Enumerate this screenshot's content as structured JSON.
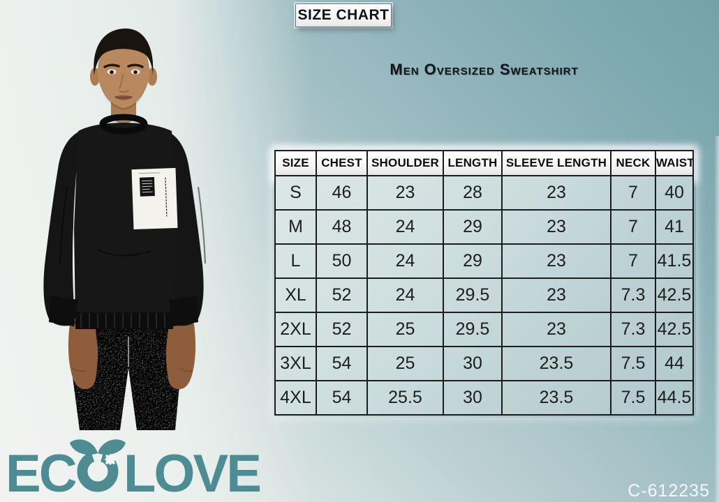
{
  "page": {
    "size_chart_label": "SIZE CHART",
    "product_title": "Men Oversized Sweatshirt",
    "product_code": "C-612235"
  },
  "brand": {
    "name": "EcoLove",
    "logo_text_left": "EC",
    "logo_text_right": "LOVE",
    "logo_color": "#4d8c93"
  },
  "model_photo": {
    "subject": "man-in-black-oversized-sweatshirt-and-grey-joggers"
  },
  "colors": {
    "background_teal": "#74a1a9",
    "background_light": "#f2f5f2",
    "table_border": "#1c1c1c",
    "table_header_bg": "#f7f7f7",
    "table_body_tint": "#cfdfe0",
    "title_text": "#13171c",
    "code_text": "#ffffff"
  },
  "chart_data": {
    "type": "table",
    "title": "Men Oversized Sweatshirt",
    "headers": [
      "SIZE",
      "CHEST",
      "SHOULDER",
      "LENGTH",
      "SLEEVE LENGTH",
      "NECK",
      "WAIST"
    ],
    "rows": [
      [
        "S",
        "46",
        "23",
        "28",
        "23",
        "7",
        "40"
      ],
      [
        "M",
        "48",
        "24",
        "29",
        "23",
        "7",
        "41"
      ],
      [
        "L",
        "50",
        "24",
        "29",
        "23",
        "7",
        "41.5"
      ],
      [
        "XL",
        "52",
        "24",
        "29.5",
        "23",
        "7.3",
        "42.5"
      ],
      [
        "2XL",
        "52",
        "25",
        "29.5",
        "23",
        "7.3",
        "42.5"
      ],
      [
        "3XL",
        "54",
        "25",
        "30",
        "23.5",
        "7.5",
        "44"
      ],
      [
        "4XL",
        "54",
        "25.5",
        "30",
        "23.5",
        "7.5",
        "44.5"
      ]
    ]
  }
}
